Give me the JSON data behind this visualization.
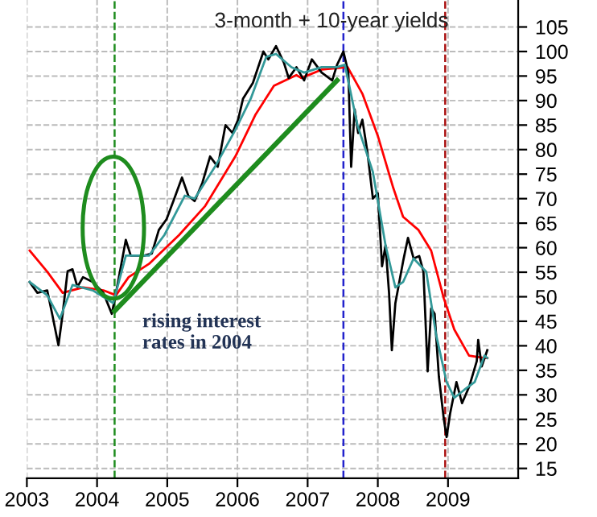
{
  "chart_data": {
    "type": "line",
    "title": "3-month + 10-year yields",
    "xlim": [
      2003,
      2010
    ],
    "xticks": [
      2003,
      2004,
      2005,
      2006,
      2007,
      2008,
      2009
    ],
    "ylim": [
      13,
      110.5
    ],
    "yticks": [
      15,
      20,
      25,
      30,
      35,
      40,
      45,
      50,
      55,
      60,
      65,
      70,
      75,
      80,
      85,
      90,
      95,
      100,
      105
    ],
    "grid": true,
    "line_style": "solid",
    "marker": "none",
    "series": [
      {
        "color": "#ff0000",
        "x": [
          2003.04,
          2003.29,
          2003.51,
          2003.8,
          2004.09,
          2004.27,
          2004.45,
          2004.74,
          2005.17,
          2005.54,
          2005.97,
          2006.26,
          2006.52,
          2006.84,
          2006.91,
          2007.2,
          2007.57,
          2007.78,
          2008.0,
          2008.22,
          2008.36,
          2008.58,
          2008.76,
          2008.94,
          2009.09,
          2009.3,
          2009.52,
          2009.56
        ],
        "values": [
          59.4,
          55.1,
          50.8,
          51.9,
          51.3,
          50.3,
          54.0,
          56.7,
          62.6,
          68.5,
          78.6,
          87.2,
          93.0,
          95.2,
          94.6,
          96.3,
          96.8,
          91.4,
          82.8,
          72.2,
          66.3,
          63.6,
          59.4,
          49.7,
          43.3,
          38.0,
          37.5,
          37.5
        ]
      },
      {
        "color": "#000000",
        "x": [
          2003.04,
          2003.15,
          2003.29,
          2003.36,
          2003.45,
          2003.51,
          2003.58,
          2003.65,
          2003.72,
          2003.8,
          2003.94,
          2004.09,
          2004.21,
          2004.27,
          2004.34,
          2004.41,
          2004.48,
          2004.67,
          2004.78,
          2004.88,
          2004.99,
          2005.1,
          2005.21,
          2005.3,
          2005.39,
          2005.5,
          2005.61,
          2005.72,
          2005.83,
          2005.93,
          2006.01,
          2006.08,
          2006.22,
          2006.37,
          2006.44,
          2006.55,
          2006.66,
          2006.73,
          2006.84,
          2006.95,
          2007.06,
          2007.2,
          2007.35,
          2007.42,
          2007.51,
          2007.58,
          2007.62,
          2007.67,
          2007.72,
          2007.78,
          2007.85,
          2007.93,
          2008.0,
          2008.06,
          2008.11,
          2008.16,
          2008.2,
          2008.25,
          2008.36,
          2008.43,
          2008.51,
          2008.59,
          2008.65,
          2008.71,
          2008.76,
          2008.81,
          2008.87,
          2008.94,
          2008.98,
          2009.03,
          2009.12,
          2009.2,
          2009.3,
          2009.41,
          2009.43,
          2009.48,
          2009.56
        ],
        "values": [
          53.0,
          50.8,
          51.3,
          46.5,
          40.1,
          46.5,
          55.2,
          55.6,
          52.0,
          54.0,
          53.0,
          50.8,
          46.5,
          50.8,
          56.2,
          61.6,
          58.4,
          58.4,
          58.8,
          63.6,
          65.8,
          70.0,
          74.3,
          70.6,
          69.5,
          73.2,
          78.6,
          76.5,
          85.0,
          83.4,
          86.1,
          90.4,
          93.6,
          100.0,
          98.4,
          101.1,
          97.8,
          94.6,
          96.8,
          94.1,
          98.4,
          95.7,
          94.1,
          97.3,
          100.0,
          95.7,
          76.5,
          88.2,
          83.4,
          86.1,
          79.7,
          70.0,
          71.1,
          56.2,
          60.5,
          50.8,
          39.1,
          48.7,
          57.2,
          62.0,
          57.8,
          58.3,
          55.1,
          34.8,
          47.6,
          46.5,
          33.7,
          25.1,
          21.4,
          26.2,
          32.6,
          28.3,
          31.6,
          36.9,
          41.2,
          35.8,
          39.1
        ]
      },
      {
        "color": "#339999",
        "x": [
          2003.04,
          2003.29,
          2003.47,
          2003.65,
          2003.94,
          2004.23,
          2004.41,
          2004.74,
          2004.96,
          2005.25,
          2005.39,
          2005.68,
          2005.97,
          2006.19,
          2006.41,
          2006.55,
          2006.77,
          2006.95,
          2007.2,
          2007.42,
          2007.53,
          2007.71,
          2007.93,
          2008.11,
          2008.25,
          2008.36,
          2008.51,
          2008.69,
          2008.83,
          2008.98,
          2009.09,
          2009.23,
          2009.38,
          2009.52,
          2009.56
        ],
        "values": [
          53.0,
          50.3,
          45.5,
          52.4,
          51.3,
          48.7,
          58.4,
          58.4,
          62.6,
          70.6,
          70.0,
          76.5,
          84.0,
          90.4,
          98.9,
          99.5,
          96.8,
          95.7,
          96.8,
          96.8,
          97.3,
          85.0,
          75.4,
          60.5,
          51.9,
          53.0,
          57.8,
          55.1,
          42.3,
          32.6,
          29.4,
          31.0,
          32.6,
          38.0,
          37.5
        ]
      },
      {
        "color": "#1e8c1e",
        "x": [
          2004.25,
          2007.42
        ],
        "values": [
          47.1,
          94.1
        ]
      }
    ],
    "ref_lines": [
      {
        "axis": "x",
        "value": 2004.25,
        "color": "#1e8c1e",
        "line_style": "dashed"
      },
      {
        "axis": "x",
        "value": 2007.51,
        "color": "#2222cc",
        "line_style": "dashed"
      },
      {
        "axis": "x",
        "value": 2008.96,
        "color": "#aa1111",
        "line_style": "dashed"
      }
    ],
    "annotations": [
      "rising interest\nrates in 2004"
    ]
  }
}
